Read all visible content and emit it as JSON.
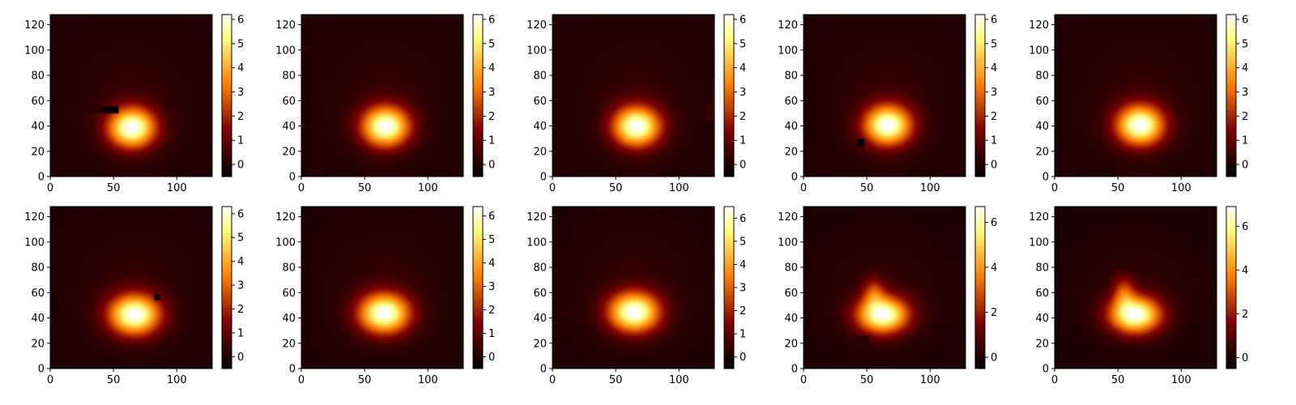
{
  "chart_data": {
    "type": "heatmap",
    "layout": "2 rows x 5 columns grid of heatmap panels, each with its own colorbar on the right",
    "colormap": "afmhot",
    "colormap_stops": [
      "#000000",
      "#3c0000",
      "#800000",
      "#c04000",
      "#ff8000",
      "#ffc040",
      "#ffff80",
      "#ffffff"
    ],
    "xlim": [
      0,
      128
    ],
    "ylim": [
      0,
      128
    ],
    "x_ticks": [
      "0",
      "50",
      "100"
    ],
    "y_ticks": [
      "0",
      "20",
      "40",
      "60",
      "80",
      "100",
      "120"
    ],
    "panels": [
      {
        "row": 0,
        "col": 0,
        "blob": {
          "cx": 64,
          "cy": 38,
          "sx": 13,
          "sy": 11,
          "peak": 6.1
        },
        "clim": [
          -0.5,
          6.2
        ],
        "cbar_ticks": [
          "0",
          "1",
          "2",
          "3",
          "4",
          "5",
          "6"
        ],
        "artifacts": [
          {
            "x": 28,
            "y": 50,
            "w": 26,
            "h": 6,
            "v": 0.15
          },
          {
            "x": 42,
            "y": 50,
            "w": 12,
            "h": 5,
            "v": -0.4
          }
        ]
      },
      {
        "row": 0,
        "col": 1,
        "blob": {
          "cx": 66,
          "cy": 39,
          "sx": 13,
          "sy": 11,
          "peak": 6.1
        },
        "clim": [
          -0.5,
          6.2
        ],
        "cbar_ticks": [
          "0",
          "1",
          "2",
          "3",
          "4",
          "5",
          "6"
        ],
        "artifacts": [
          {
            "x": 0,
            "y": 98,
            "w": 6,
            "h": 6,
            "v": 0.3
          }
        ]
      },
      {
        "row": 0,
        "col": 2,
        "blob": {
          "cx": 66,
          "cy": 39,
          "sx": 13,
          "sy": 11,
          "peak": 6.1
        },
        "clim": [
          -0.5,
          6.2
        ],
        "cbar_ticks": [
          "0",
          "1",
          "2",
          "3",
          "4",
          "5",
          "6"
        ],
        "artifacts": [
          {
            "x": 120,
            "y": 44,
            "w": 8,
            "h": 14,
            "v": 0.35
          }
        ]
      },
      {
        "row": 0,
        "col": 3,
        "blob": {
          "cx": 66,
          "cy": 40,
          "sx": 13,
          "sy": 11,
          "peak": 6.1
        },
        "clim": [
          -0.5,
          6.2
        ],
        "cbar_ticks": [
          "0",
          "1",
          "2",
          "3",
          "4",
          "5",
          "6"
        ],
        "artifacts": [
          {
            "x": 42,
            "y": 24,
            "w": 6,
            "h": 6,
            "v": -0.4
          }
        ]
      },
      {
        "row": 0,
        "col": 4,
        "blob": {
          "cx": 67,
          "cy": 40,
          "sx": 13,
          "sy": 11,
          "peak": 6.1
        },
        "clim": [
          -0.5,
          6.2
        ],
        "cbar_ticks": [
          "0",
          "1",
          "2",
          "3",
          "4",
          "5",
          "6"
        ],
        "artifacts": [
          {
            "x": 40,
            "y": 113,
            "w": 6,
            "h": 2,
            "v": 0.3
          }
        ]
      },
      {
        "row": 1,
        "col": 0,
        "blob": {
          "cx": 66,
          "cy": 42,
          "sx": 14,
          "sy": 11,
          "peak": 6.2
        },
        "clim": [
          -0.5,
          6.3
        ],
        "cbar_ticks": [
          "0",
          "1",
          "2",
          "3",
          "4",
          "5",
          "6"
        ],
        "artifacts": [
          {
            "x": 6,
            "y": 52,
            "w": 24,
            "h": 3,
            "v": 0.2
          },
          {
            "x": 82,
            "y": 54,
            "w": 5,
            "h": 5,
            "v": -0.4
          }
        ]
      },
      {
        "row": 1,
        "col": 1,
        "blob": {
          "cx": 65,
          "cy": 43,
          "sx": 14,
          "sy": 11,
          "peak": 6.3
        },
        "clim": [
          -0.5,
          6.4
        ],
        "cbar_ticks": [
          "0",
          "1",
          "2",
          "3",
          "4",
          "5",
          "6"
        ],
        "artifacts": []
      },
      {
        "row": 1,
        "col": 2,
        "blob": {
          "cx": 64,
          "cy": 44,
          "sx": 14,
          "sy": 11,
          "peak": 6.4
        },
        "clim": [
          -0.5,
          6.5
        ],
        "cbar_ticks": [
          "0",
          "1",
          "2",
          "3",
          "4",
          "5",
          "6"
        ],
        "artifacts": [
          {
            "x": 6,
            "y": 42,
            "w": 8,
            "h": 5,
            "v": 0.25
          }
        ]
      },
      {
        "row": 1,
        "col": 3,
        "blob": {
          "cx": 62,
          "cy": 42,
          "sx": 14,
          "sy": 10,
          "peak": 6.6
        },
        "clim": [
          -0.5,
          6.7
        ],
        "cbar_ticks": [
          "0",
          "2",
          "4",
          "6"
        ],
        "tail": {
          "cx": 55,
          "cy": 60,
          "sx": 6,
          "sy": 8,
          "peak": 2.0
        },
        "artifacts": [
          {
            "x": 52,
            "y": 86,
            "w": 14,
            "h": 6,
            "v": 0.25
          },
          {
            "x": 40,
            "y": 18,
            "w": 12,
            "h": 8,
            "v": 0.2
          }
        ]
      },
      {
        "row": 1,
        "col": 4,
        "blob": {
          "cx": 63,
          "cy": 42,
          "sx": 14,
          "sy": 10,
          "peak": 6.8
        },
        "clim": [
          -0.5,
          6.9
        ],
        "cbar_ticks": [
          "0",
          "2",
          "4",
          "6"
        ],
        "tail": {
          "cx": 54,
          "cy": 60,
          "sx": 6,
          "sy": 9,
          "peak": 2.2
        },
        "artifacts": [
          {
            "x": 48,
            "y": 78,
            "w": 14,
            "h": 6,
            "v": 0.25
          },
          {
            "x": 108,
            "y": 68,
            "w": 10,
            "h": 3,
            "v": 0.35
          }
        ]
      }
    ]
  }
}
